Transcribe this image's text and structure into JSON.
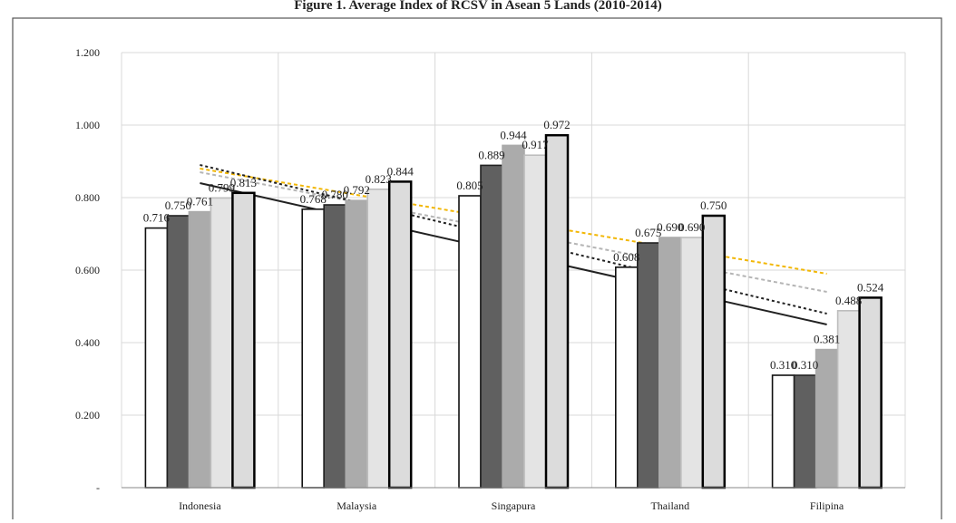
{
  "chart_data": {
    "type": "bar",
    "title": "Figure 1. Average Index of RCSV in Asean 5 Lands (2010-2014)",
    "categories": [
      "Indonesia",
      "Malaysia",
      "Singapura",
      "Thailand",
      "Filipina"
    ],
    "ylim": [
      0,
      1.2
    ],
    "y_ticks": [
      "-",
      "0.200",
      "0.400",
      "0.600",
      "0.800",
      "1.000",
      "1.200"
    ],
    "grid": true,
    "legend": "none",
    "series": [
      {
        "values": [
          0.716,
          0.768,
          0.805,
          0.608,
          0.31
        ],
        "labels": [
          "0.716",
          "0.768",
          "0.805",
          "0.608",
          "0.310"
        ],
        "fill": "#ffffff",
        "stroke": "#111111"
      },
      {
        "values": [
          0.75,
          0.78,
          0.889,
          0.675,
          0.31
        ],
        "labels": [
          "0.750",
          "0.780",
          "0.889",
          "0.675",
          "0.310"
        ],
        "fill": "#606060",
        "stroke": "#222222"
      },
      {
        "values": [
          0.761,
          0.792,
          0.944,
          0.69,
          0.381
        ],
        "labels": [
          "0.761",
          "0.792",
          "0.944",
          "0.690",
          "0.381"
        ],
        "fill": "#ababab",
        "stroke": "#ababab"
      },
      {
        "values": [
          0.799,
          0.823,
          0.917,
          0.69,
          0.488
        ],
        "labels": [
          "0.799",
          "0.823",
          "0.917",
          "0.690",
          "0.488"
        ],
        "fill": "#e4e4e4",
        "stroke": "#bdbdbd"
      },
      {
        "values": [
          0.813,
          0.844,
          0.972,
          0.75,
          0.524
        ],
        "labels": [
          "0.813",
          "0.844",
          "0.972",
          "0.750",
          "0.524"
        ],
        "fill": "#dcdcdc",
        "stroke": "#000000"
      }
    ],
    "trendlines": [
      {
        "start": 0.88,
        "end": 0.59,
        "color": "#f2b705",
        "dash": "4,3"
      },
      {
        "start": 0.87,
        "end": 0.54,
        "color": "#b5b5b5",
        "dash": "4,3"
      },
      {
        "start": 0.89,
        "end": 0.48,
        "color": "#222222",
        "dash": "3,3"
      },
      {
        "start": 0.84,
        "end": 0.45,
        "color": "#222222",
        "dash": ""
      }
    ]
  }
}
